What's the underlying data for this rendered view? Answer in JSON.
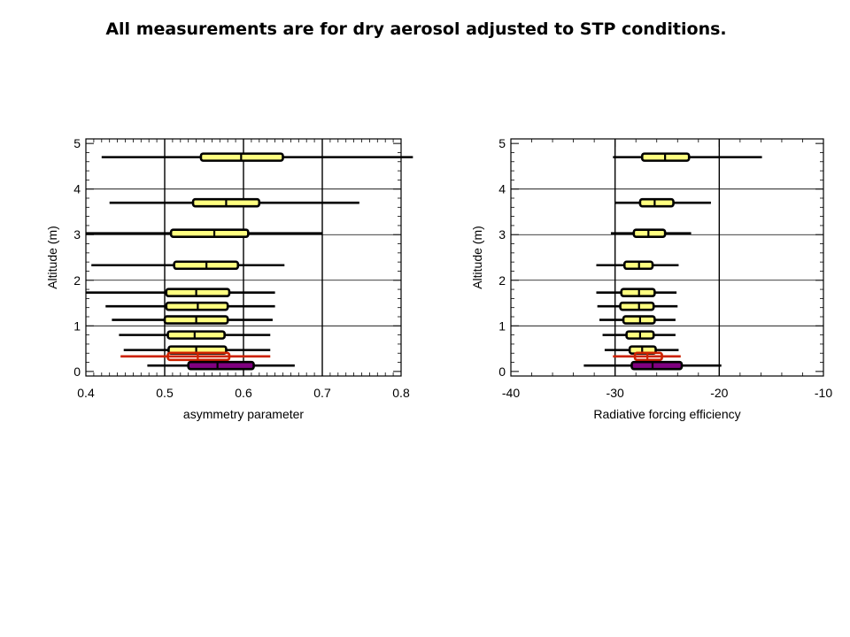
{
  "slide": {
    "title": "All measurements are for dry aerosol adjusted to STP conditions."
  },
  "colors": {
    "yellow": "#ffff80",
    "purple": "#800080",
    "red": "#cc2200",
    "black": "#000000",
    "grid": "#000000"
  },
  "chart_data": [
    {
      "type": "box",
      "xlabel": "asymmetry parameter",
      "ylabel": "Altitude (m)",
      "xlim": [
        0.4,
        0.8
      ],
      "ylim": [
        -0.1,
        5.1
      ],
      "xticks": [
        "0.4",
        "0.5",
        "0.6",
        "0.7",
        "0.8"
      ],
      "yticks": [
        "0",
        "1",
        "2",
        "3",
        "4",
        "5"
      ],
      "vgrid": [
        0.5,
        0.6,
        0.7
      ],
      "hgrid": [
        1,
        2,
        3,
        4
      ],
      "boxes": [
        {
          "y": 4.7,
          "whisker_low": 0.42,
          "q1": 0.546,
          "median": 0.597,
          "q3": 0.65,
          "whisker_high": 0.815,
          "color": "yellow"
        },
        {
          "y": 3.7,
          "whisker_low": 0.43,
          "q1": 0.536,
          "median": 0.578,
          "q3": 0.62,
          "whisker_high": 0.747,
          "color": "yellow"
        },
        {
          "y": 3.03,
          "whisker_low": 0.4,
          "q1": 0.508,
          "median": 0.563,
          "q3": 0.606,
          "whisker_high": 0.7,
          "color": "yellow"
        },
        {
          "y": 2.33,
          "whisker_low": 0.407,
          "q1": 0.512,
          "median": 0.553,
          "q3": 0.593,
          "whisker_high": 0.652,
          "color": "yellow"
        },
        {
          "y": 1.73,
          "whisker_low": 0.4,
          "q1": 0.502,
          "median": 0.54,
          "q3": 0.582,
          "whisker_high": 0.64,
          "color": "yellow"
        },
        {
          "y": 1.43,
          "whisker_low": 0.425,
          "q1": 0.502,
          "median": 0.542,
          "q3": 0.58,
          "whisker_high": 0.64,
          "color": "yellow"
        },
        {
          "y": 1.13,
          "whisker_low": 0.433,
          "q1": 0.5,
          "median": 0.54,
          "q3": 0.58,
          "whisker_high": 0.637,
          "color": "yellow"
        },
        {
          "y": 0.8,
          "whisker_low": 0.442,
          "q1": 0.504,
          "median": 0.538,
          "q3": 0.576,
          "whisker_high": 0.634,
          "color": "yellow"
        },
        {
          "y": 0.47,
          "whisker_low": 0.448,
          "q1": 0.505,
          "median": 0.54,
          "q3": 0.578,
          "whisker_high": 0.634,
          "color": "yellow"
        },
        {
          "y": 0.33,
          "whisker_low": 0.444,
          "q1": 0.504,
          "median": 0.542,
          "q3": 0.582,
          "whisker_high": 0.634,
          "color": "red"
        },
        {
          "y": 0.13,
          "whisker_low": 0.478,
          "q1": 0.53,
          "median": 0.567,
          "q3": 0.613,
          "whisker_high": 0.665,
          "color": "purple"
        }
      ]
    },
    {
      "type": "box",
      "xlabel": "Radiative forcing efficiency",
      "ylabel": "Altitude (m)",
      "xlim": [
        -40,
        -10
      ],
      "ylim": [
        -0.1,
        5.1
      ],
      "xticks": [
        "-40",
        "-30",
        "-20",
        "-10"
      ],
      "yticks": [
        "0",
        "1",
        "2",
        "3",
        "4",
        "5"
      ],
      "vgrid": [
        -30,
        -20
      ],
      "hgrid": [
        1,
        2,
        3,
        4
      ],
      "boxes": [
        {
          "y": 4.7,
          "whisker_low": -30.2,
          "q1": -27.4,
          "median": -25.2,
          "q3": -22.9,
          "whisker_high": -15.9,
          "color": "yellow"
        },
        {
          "y": 3.7,
          "whisker_low": -30.0,
          "q1": -27.6,
          "median": -26.2,
          "q3": -24.4,
          "whisker_high": -20.8,
          "color": "yellow"
        },
        {
          "y": 3.03,
          "whisker_low": -30.4,
          "q1": -28.2,
          "median": -26.8,
          "q3": -25.2,
          "whisker_high": -22.7,
          "color": "yellow"
        },
        {
          "y": 2.33,
          "whisker_low": -31.8,
          "q1": -29.1,
          "median": -27.7,
          "q3": -26.4,
          "whisker_high": -23.9,
          "color": "yellow"
        },
        {
          "y": 1.73,
          "whisker_low": -31.8,
          "q1": -29.4,
          "median": -27.7,
          "q3": -26.2,
          "whisker_high": -24.1,
          "color": "yellow"
        },
        {
          "y": 1.43,
          "whisker_low": -31.7,
          "q1": -29.5,
          "median": -27.7,
          "q3": -26.3,
          "whisker_high": -24.0,
          "color": "yellow"
        },
        {
          "y": 1.13,
          "whisker_low": -31.5,
          "q1": -29.2,
          "median": -27.6,
          "q3": -26.2,
          "whisker_high": -24.2,
          "color": "yellow"
        },
        {
          "y": 0.8,
          "whisker_low": -31.2,
          "q1": -28.9,
          "median": -27.6,
          "q3": -26.3,
          "whisker_high": -24.2,
          "color": "yellow"
        },
        {
          "y": 0.47,
          "whisker_low": -31.0,
          "q1": -28.6,
          "median": -27.4,
          "q3": -26.1,
          "whisker_high": -23.9,
          "color": "yellow"
        },
        {
          "y": 0.33,
          "whisker_low": -30.2,
          "q1": -28.1,
          "median": -26.9,
          "q3": -25.5,
          "whisker_high": -23.7,
          "color": "red"
        },
        {
          "y": 0.13,
          "whisker_low": -33.0,
          "q1": -28.4,
          "median": -26.4,
          "q3": -23.6,
          "whisker_high": -19.8,
          "color": "purple"
        }
      ]
    }
  ]
}
